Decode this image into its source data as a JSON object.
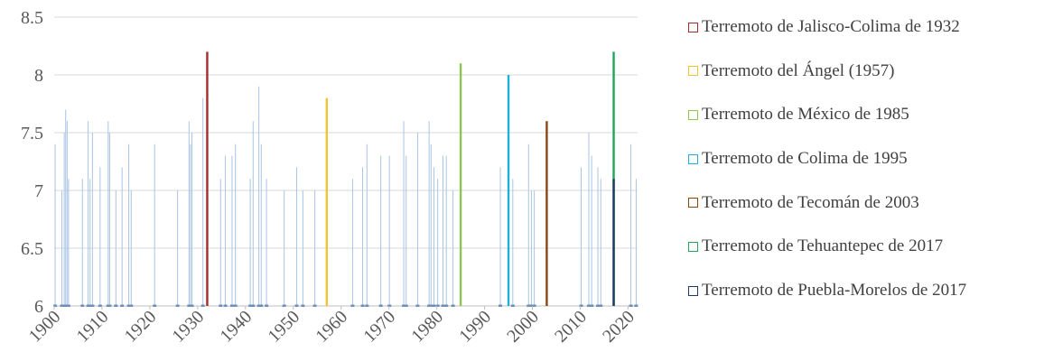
{
  "chart_data": {
    "type": "bar",
    "xlim": [
      1900,
      2022
    ],
    "ylim": [
      6,
      8.5
    ],
    "yticks": [
      "6",
      "6.5",
      "7",
      "7.5",
      "8",
      "8.5"
    ],
    "xticks": [
      "1900",
      "1910",
      "1920",
      "1930",
      "1940",
      "1950",
      "1960",
      "1970",
      "1980",
      "1990",
      "2000",
      "2010",
      "2020"
    ],
    "grid": true,
    "legend_position": "right",
    "background_color": "#a9c4e4",
    "background_events": [
      {
        "year": 1900.2,
        "value": 7.4
      },
      {
        "year": 1901.6,
        "value": 7.0
      },
      {
        "year": 1902.1,
        "value": 7.5
      },
      {
        "year": 1902.4,
        "value": 7.7
      },
      {
        "year": 1902.7,
        "value": 7.6
      },
      {
        "year": 1903.0,
        "value": 7.1
      },
      {
        "year": 1905.9,
        "value": 7.1
      },
      {
        "year": 1907.1,
        "value": 7.6
      },
      {
        "year": 1907.5,
        "value": 7.1
      },
      {
        "year": 1908.0,
        "value": 7.5
      },
      {
        "year": 1909.6,
        "value": 7.2
      },
      {
        "year": 1911.3,
        "value": 7.6
      },
      {
        "year": 1911.6,
        "value": 7.5
      },
      {
        "year": 1912.9,
        "value": 7.0
      },
      {
        "year": 1914.2,
        "value": 7.2
      },
      {
        "year": 1915.6,
        "value": 7.4
      },
      {
        "year": 1916.1,
        "value": 7.0
      },
      {
        "year": 1921.0,
        "value": 7.4
      },
      {
        "year": 1925.8,
        "value": 7.0
      },
      {
        "year": 1928.2,
        "value": 7.6
      },
      {
        "year": 1928.5,
        "value": 7.4
      },
      {
        "year": 1928.8,
        "value": 7.5
      },
      {
        "year": 1931.1,
        "value": 7.8
      },
      {
        "year": 1934.8,
        "value": 7.1
      },
      {
        "year": 1935.8,
        "value": 7.3
      },
      {
        "year": 1937.2,
        "value": 7.3
      },
      {
        "year": 1937.9,
        "value": 7.4
      },
      {
        "year": 1941.0,
        "value": 7.1
      },
      {
        "year": 1941.6,
        "value": 7.6
      },
      {
        "year": 1942.8,
        "value": 7.9
      },
      {
        "year": 1943.3,
        "value": 7.4
      },
      {
        "year": 1944.4,
        "value": 7.1
      },
      {
        "year": 1948.1,
        "value": 7.0
      },
      {
        "year": 1950.7,
        "value": 7.2
      },
      {
        "year": 1952.0,
        "value": 7.0
      },
      {
        "year": 1954.5,
        "value": 7.0
      },
      {
        "year": 1962.4,
        "value": 7.1
      },
      {
        "year": 1964.5,
        "value": 7.2
      },
      {
        "year": 1965.4,
        "value": 7.4
      },
      {
        "year": 1968.3,
        "value": 7.3
      },
      {
        "year": 1970.1,
        "value": 7.3
      },
      {
        "year": 1973.1,
        "value": 7.6
      },
      {
        "year": 1973.6,
        "value": 7.3
      },
      {
        "year": 1976.0,
        "value": 7.5
      },
      {
        "year": 1978.4,
        "value": 7.6
      },
      {
        "year": 1978.8,
        "value": 7.4
      },
      {
        "year": 1979.4,
        "value": 7.2
      },
      {
        "year": 1980.2,
        "value": 7.1
      },
      {
        "year": 1981.3,
        "value": 7.3
      },
      {
        "year": 1982.0,
        "value": 7.3
      },
      {
        "year": 1983.4,
        "value": 7.0
      },
      {
        "year": 1993.3,
        "value": 7.2
      },
      {
        "year": 1995.9,
        "value": 7.1
      },
      {
        "year": 1999.2,
        "value": 7.4
      },
      {
        "year": 1999.8,
        "value": 7.0
      },
      {
        "year": 2000.4,
        "value": 7.0
      },
      {
        "year": 2010.2,
        "value": 7.2
      },
      {
        "year": 2011.8,
        "value": 7.5
      },
      {
        "year": 2012.4,
        "value": 7.3
      },
      {
        "year": 2013.7,
        "value": 7.2
      },
      {
        "year": 2014.3,
        "value": 7.1
      },
      {
        "year": 2020.6,
        "value": 7.4
      },
      {
        "year": 2021.7,
        "value": 7.1
      }
    ],
    "series": [
      {
        "name": "Terremoto de Jalisco-Colima de 1932",
        "year": 1932,
        "value": 8.2,
        "color": "#a52a2a"
      },
      {
        "name": "Terremoto del Ángel (1957)",
        "year": 1957,
        "value": 7.8,
        "color": "#f2c230"
      },
      {
        "name": "Terremoto de México de 1985",
        "year": 1985,
        "value": 8.1,
        "color": "#8fc454"
      },
      {
        "name": "Terremoto de Colima de 1995",
        "year": 1995,
        "value": 8.0,
        "color": "#1fb0d8"
      },
      {
        "name": "Terremoto de Tecomán de 2003",
        "year": 2003,
        "value": 7.6,
        "color": "#8b4513"
      },
      {
        "name": "Terremoto de Tehuantepec de 2017",
        "year": 2017,
        "value": 8.2,
        "color": "#1ea65a"
      },
      {
        "name": "Terremoto de Puebla-Morelos de 2017",
        "year": 2017,
        "value": 7.1,
        "color": "#1f3864"
      }
    ]
  }
}
